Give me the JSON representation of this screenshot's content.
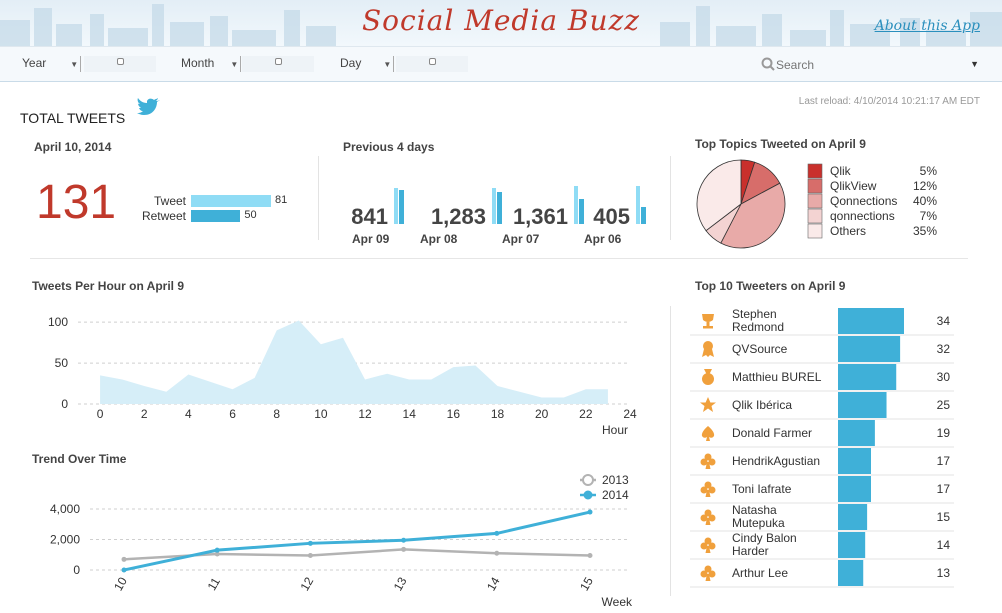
{
  "header": {
    "title": "Social Media Buzz",
    "about_link": "About this App"
  },
  "colors": {
    "accent_blue": "#3fb0d8",
    "light_blue": "#8fdcf5",
    "title_red": "#c0392b",
    "area_fill": "#d6eef8",
    "icon_orange": "#f0a03c"
  },
  "toolbar": {
    "year_label": "Year",
    "month_label": "Month",
    "day_label": "Day",
    "search_placeholder": "Search"
  },
  "dashboard": {
    "total_tweets_label": "TOTAL TWEETS",
    "last_reload": "Last reload: 4/10/2014 10:21:17 AM EDT"
  },
  "today": {
    "date_label": "April 10, 2014",
    "total": "131",
    "bars": [
      {
        "label": "Tweet",
        "value": 81,
        "display": "81"
      },
      {
        "label": "Retweet",
        "value": 50,
        "display": "50"
      }
    ]
  },
  "previous": {
    "title": "Previous 4 days",
    "days": [
      {
        "value": "841",
        "date": "Apr 09",
        "bar_a": 0.95,
        "bar_b": 0.9
      },
      {
        "value": "1,283",
        "date": "Apr 08",
        "bar_a": 0.95,
        "bar_b": 0.85
      },
      {
        "value": "1,361",
        "date": "Apr 07",
        "bar_a": 1.0,
        "bar_b": 0.65
      },
      {
        "value": "405",
        "date": "Apr 06",
        "bar_a": 1.0,
        "bar_b": 0.45
      }
    ]
  },
  "chart_data": [
    {
      "type": "pie",
      "title": "Top Topics Tweeted on April 9",
      "slices": [
        {
          "label": "Qlik",
          "display": "5%",
          "value": 5,
          "color": "#c9302c"
        },
        {
          "label": "QlikView",
          "display": "12%",
          "value": 12,
          "color": "#d76d6a"
        },
        {
          "label": "Qonnections",
          "display": "40%",
          "value": 40,
          "color": "#e8aaa8"
        },
        {
          "label": "qonnections",
          "display": "7%",
          "value": 7,
          "color": "#f3d3d2"
        },
        {
          "label": "Others",
          "display": "35%",
          "value": 35,
          "color": "#faeae9"
        }
      ]
    },
    {
      "type": "area",
      "title": "Tweets Per Hour on April 9",
      "xlabel": "Hour",
      "x": [
        0,
        1,
        2,
        3,
        4,
        5,
        6,
        7,
        8,
        9,
        10,
        11,
        12,
        13,
        14,
        15,
        16,
        17,
        18,
        19,
        20,
        21,
        22,
        23
      ],
      "values": [
        35,
        30,
        22,
        15,
        36,
        27,
        18,
        32,
        90,
        102,
        73,
        81,
        30,
        37,
        30,
        30,
        45,
        47,
        22,
        15,
        8,
        8,
        18,
        18
      ],
      "xlim": [
        -1,
        24
      ],
      "ylim": [
        0,
        110
      ],
      "x_ticks": [
        "0",
        "2",
        "4",
        "6",
        "8",
        "10",
        "12",
        "14",
        "16",
        "18",
        "20",
        "22",
        "24"
      ],
      "x_tick_values": [
        0,
        2,
        4,
        6,
        8,
        10,
        12,
        14,
        16,
        18,
        20,
        22,
        24
      ],
      "y_ticks": [
        "0",
        "50",
        "100"
      ],
      "y_tick_values": [
        0,
        50,
        100
      ]
    },
    {
      "type": "line",
      "title": "Trend Over Time",
      "xlabel": "Week",
      "categories": [
        "10",
        "11",
        "12",
        "13",
        "14",
        "15"
      ],
      "ylim": [
        0,
        4500
      ],
      "y_ticks": [
        "0",
        "2,000",
        "4,000"
      ],
      "y_tick_values": [
        0,
        2000,
        4000
      ],
      "series": [
        {
          "name": "2013",
          "values": [
            700,
            1050,
            950,
            1350,
            1100,
            950
          ],
          "color": "#b3b3b3"
        },
        {
          "name": "2014",
          "values": [
            0,
            1300,
            1750,
            1950,
            2400,
            3800
          ],
          "color": "#3fb0d8"
        }
      ]
    },
    {
      "type": "bar",
      "title": "Top 10 Tweeters on April 9",
      "categories": [
        "Stephen Redmond",
        "QVSource",
        "Matthieu BUREL",
        "Qlik Ibérica",
        "Donald Farmer",
        "HendrikAgustian",
        "Toni Iafrate",
        "Natasha Mutepuka",
        "Cindy Balon Harder",
        "Arthur Lee"
      ],
      "values": [
        34,
        32,
        30,
        25,
        19,
        17,
        17,
        15,
        14,
        13
      ],
      "xlim": [
        0,
        34
      ]
    }
  ],
  "tweeters": {
    "icons": [
      "trophy-icon",
      "ribbon-icon",
      "medal-icon",
      "star-icon",
      "spade-icon",
      "club-icon",
      "club-icon",
      "club-icon",
      "club-icon",
      "club-icon"
    ],
    "name_lines": [
      [
        "Stephen",
        "Redmond"
      ],
      [
        "QVSource"
      ],
      [
        "Matthieu BUREL"
      ],
      [
        "Qlik Ibérica"
      ],
      [
        "Donald Farmer"
      ],
      [
        "HendrikAgustian"
      ],
      [
        "Toni Iafrate"
      ],
      [
        "Natasha",
        "Mutepuka"
      ],
      [
        "Cindy Balon",
        "Harder"
      ],
      [
        "Arthur Lee"
      ]
    ]
  }
}
